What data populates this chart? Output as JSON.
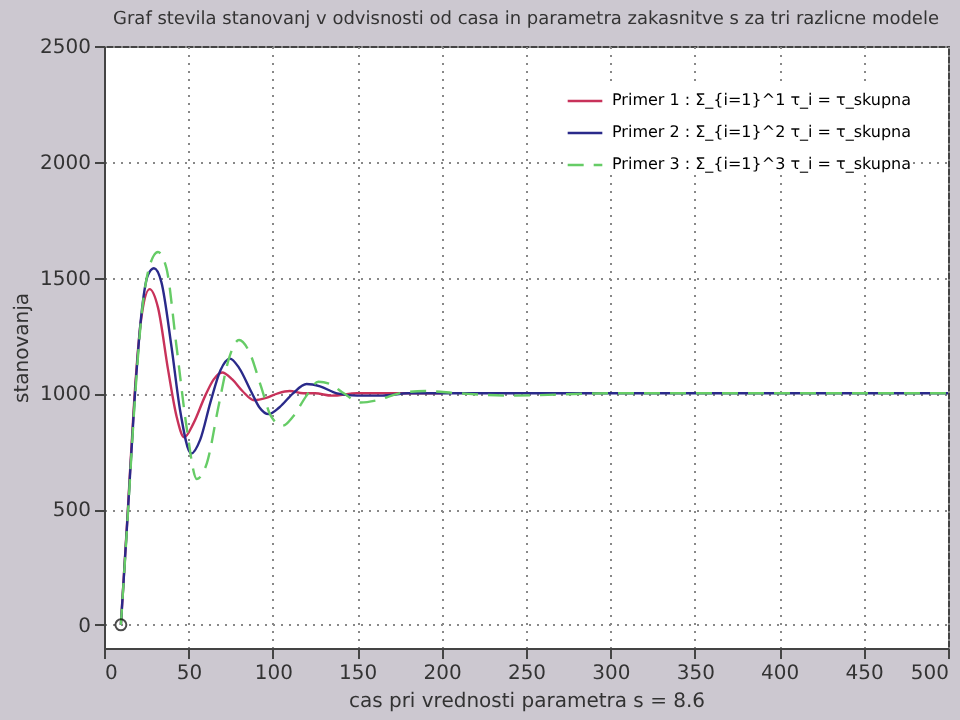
{
  "chart_data": {
    "type": "line",
    "title": "Graf stevila stanovanj v odvisnosti od casa in parametra zakasnitve s za tri razlicne modele",
    "xlabel": "cas pri vrednosti parametra s = 8.6",
    "ylabel": "stanovanja",
    "xlim": [
      0,
      500
    ],
    "ylim": [
      -100,
      2500
    ],
    "xticks": [
      0,
      50,
      100,
      150,
      200,
      250,
      300,
      350,
      400,
      450,
      500
    ],
    "yticks": [
      0,
      500,
      1000,
      1500,
      2000,
      2500
    ],
    "grid": true,
    "legend": "top right",
    "marker": "none",
    "series": [
      {
        "name": "Primer 1 : Σ_{i=1}^1 τ_i = τ_skupna",
        "color": "#c8325a",
        "line_style": "solid",
        "x": [
          10,
          14,
          18,
          22,
          27,
          32,
          38,
          43,
          47.5,
          53,
          60,
          65,
          70,
          76,
          82,
          89,
          96,
          103,
          110,
          118,
          125,
          135,
          150,
          175,
          200
        ],
        "values": [
          0,
          480,
          980,
          1320,
          1450,
          1370,
          1100,
          900,
          810,
          870,
          990,
          1060,
          1090,
          1060,
          1010,
          970,
          980,
          1000,
          1010,
          1000,
          1000,
          990,
          1000,
          1000,
          1000
        ]
      },
      {
        "name": "Primer 2 : Σ_{i=1}^2 τ_i = τ_skupna",
        "color": "#2a2a8a",
        "line_style": "solid",
        "x": [
          10,
          14,
          18,
          22,
          26,
          29.6,
          34,
          40,
          45,
          51.7,
          57,
          63,
          69,
          74.6,
          80,
          87,
          92,
          97.5,
          104,
          112,
          120,
          128,
          138,
          150,
          165,
          180,
          200,
          300,
          500
        ],
        "values": [
          0,
          470,
          960,
          1330,
          1510,
          1540,
          1480,
          1200,
          930,
          740,
          800,
          960,
          1100,
          1150,
          1110,
          1010,
          940,
          910,
          940,
          1000,
          1040,
          1030,
          1000,
          990,
          990,
          1000,
          1000,
          1000,
          1000
        ]
      },
      {
        "name": "Primer 3 : Σ_{i=1}^3 τ_i = τ_skupna",
        "color": "#66cc66",
        "line_style": "dashed",
        "x": [
          10,
          14,
          18,
          22,
          27,
          32,
          37,
          43,
          49,
          55,
          61,
          68,
          74,
          80,
          86,
          93,
          99,
          105.8,
          112,
          120,
          127,
          134,
          142,
          152,
          162,
          175,
          190,
          210,
          240,
          300,
          500
        ],
        "values": [
          0,
          460,
          940,
          1320,
          1550,
          1610,
          1540,
          1200,
          850,
          630,
          700,
          950,
          1150,
          1230,
          1180,
          1030,
          900,
          860,
          900,
          990,
          1050,
          1040,
          1000,
          960,
          970,
          1000,
          1010,
          1000,
          990,
          1000,
          1000
        ]
      },
      {
        "type": "scatter",
        "color": "#000000",
        "marker": "circle",
        "x": [
          10
        ],
        "values": [
          0
        ]
      }
    ]
  }
}
